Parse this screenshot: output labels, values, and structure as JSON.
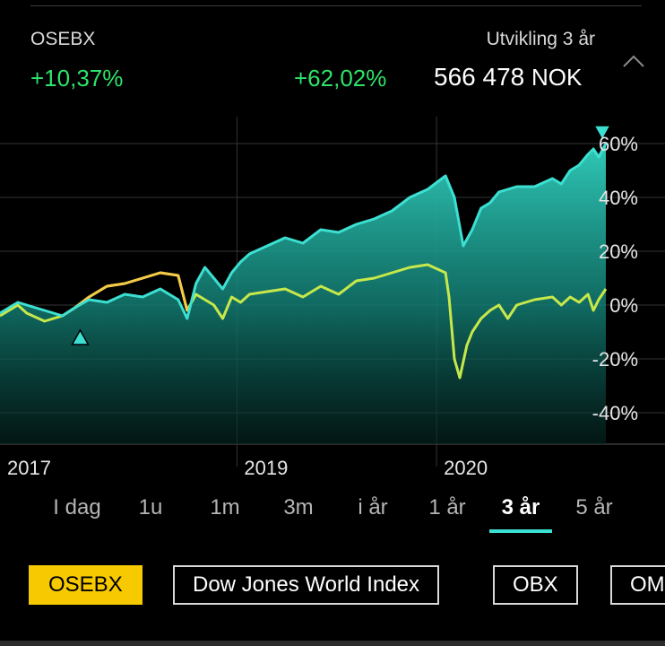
{
  "header": {
    "index_name": "OSEBX",
    "development_label": "Utvikling  3 år",
    "index_change": "+10,37%",
    "portfolio_change": "+62,02%",
    "portfolio_value": "566 478",
    "currency": "NOK",
    "collapse_icon": "chevron-up-icon"
  },
  "ranges": {
    "items": [
      "I dag",
      "1u",
      "1m",
      "3m",
      "i år",
      "1 år",
      "3 år",
      "5 år"
    ],
    "active": "3 år"
  },
  "chips": [
    {
      "label": "OSEBX",
      "active": true
    },
    {
      "label": "Dow Jones World Index",
      "active": false
    },
    {
      "label": "OBX",
      "active": false
    },
    {
      "label": "OM",
      "active": false
    }
  ],
  "colors": {
    "background": "#000000",
    "portfolio_line": "#3ce0d2",
    "index_line": "#c6e84a",
    "highlight_line": "#f7c948",
    "positive": "#2ee36a",
    "active_chip": "#f7c900"
  },
  "chart_data": {
    "type": "area",
    "ylim": [
      -45,
      70
    ],
    "y_ticks": [
      "60%",
      "40%",
      "20%",
      "0%",
      "-20%",
      "-40%"
    ],
    "y_tick_values": [
      60,
      40,
      20,
      0,
      -20,
      -40
    ],
    "x_ticks": [
      {
        "label": "2017",
        "x": 2017.5
      },
      {
        "label": "2019",
        "x": 2018.83
      },
      {
        "label": "2020",
        "x": 2019.95
      }
    ],
    "xlim": [
      2017.5,
      2020.9
    ],
    "series": [
      {
        "name": "",
        "role": "portfolio",
        "x": [
          2017.5,
          2017.6,
          2017.65,
          2017.75,
          2017.85,
          2017.92,
          2018.0,
          2018.1,
          2018.2,
          2018.3,
          2018.4,
          2018.5,
          2018.55,
          2018.6,
          2018.65,
          2018.7,
          2018.75,
          2018.8,
          2018.85,
          2018.9,
          2019.0,
          2019.1,
          2019.2,
          2019.3,
          2019.4,
          2019.5,
          2019.6,
          2019.7,
          2019.8,
          2019.9,
          2020.0,
          2020.05,
          2020.1,
          2020.15,
          2020.2,
          2020.25,
          2020.3,
          2020.4,
          2020.5,
          2020.6,
          2020.65,
          2020.7,
          2020.75,
          2020.8,
          2020.83,
          2020.86,
          2020.9
        ],
        "y": [
          -3,
          1,
          0,
          -2,
          -4,
          -1,
          2,
          1,
          4,
          3,
          6,
          2,
          -5,
          8,
          14,
          10,
          6,
          12,
          16,
          19,
          22,
          25,
          23,
          28,
          27,
          30,
          32,
          35,
          40,
          43,
          48,
          40,
          22,
          28,
          36,
          38,
          42,
          44,
          44,
          47,
          45,
          50,
          52,
          56,
          58,
          55,
          60
        ]
      },
      {
        "name": "OSEBX",
        "role": "index",
        "x": [
          2017.5,
          2017.6,
          2017.65,
          2017.75,
          2017.85,
          2017.92,
          2018.0,
          2018.1,
          2018.2,
          2018.3,
          2018.4,
          2018.5,
          2018.55,
          2018.6,
          2018.65,
          2018.7,
          2018.75,
          2018.8,
          2018.85,
          2018.9,
          2019.0,
          2019.1,
          2019.2,
          2019.3,
          2019.4,
          2019.5,
          2019.6,
          2019.7,
          2019.8,
          2019.9,
          2020.0,
          2020.02,
          2020.05,
          2020.08,
          2020.12,
          2020.15,
          2020.2,
          2020.25,
          2020.3,
          2020.35,
          2020.4,
          2020.5,
          2020.6,
          2020.65,
          2020.7,
          2020.75,
          2020.8,
          2020.83,
          2020.86,
          2020.9
        ],
        "y": [
          -4,
          0,
          -3,
          -6,
          -4,
          -1,
          3,
          7,
          8,
          10,
          12,
          11,
          -2,
          4,
          2,
          0,
          -5,
          3,
          1,
          4,
          5,
          6,
          3,
          7,
          4,
          9,
          10,
          12,
          14,
          15,
          12,
          3,
          -20,
          -27,
          -15,
          -10,
          -5,
          -2,
          0,
          -5,
          0,
          2,
          3,
          0,
          3,
          1,
          4,
          -2,
          2,
          6
        ]
      }
    ],
    "markers": [
      {
        "type": "triangle-up",
        "x": 2017.95,
        "y": -12
      },
      {
        "type": "triangle-down",
        "x": 2020.88,
        "y": 64
      }
    ]
  }
}
